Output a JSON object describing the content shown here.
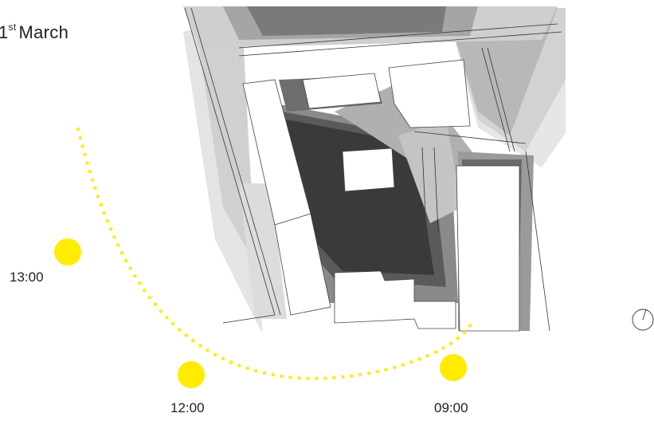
{
  "title": {
    "day": "1",
    "suffix": "st",
    "month": "March"
  },
  "sun_color": "#ffec00",
  "sun_times": [
    {
      "label": "13:00"
    },
    {
      "label": "12:00"
    },
    {
      "label": "09:00"
    }
  ],
  "icons": {
    "compass": "north-arrow-compass-icon"
  }
}
